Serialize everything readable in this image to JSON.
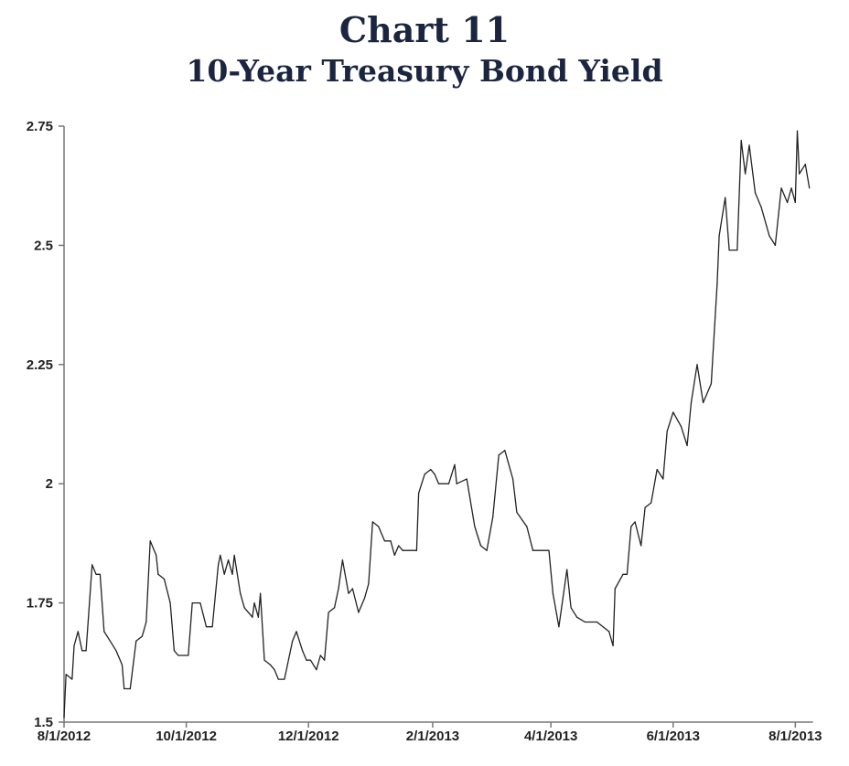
{
  "chart_data": {
    "type": "line",
    "title": "Chart 11",
    "subtitle": "10-Year Treasury Bond Yield",
    "xlabel": "",
    "ylabel": "",
    "x_unit": "days since 8/1/2012",
    "xlim": [
      0,
      372
    ],
    "ylim": [
      1.5,
      2.75
    ],
    "grid": false,
    "legend": "none",
    "y_ticks": [
      {
        "value": 2.75,
        "label": "2.75"
      },
      {
        "value": 2.5,
        "label": "2.5"
      },
      {
        "value": 2.25,
        "label": "2.25"
      },
      {
        "value": 2.0,
        "label": "2"
      },
      {
        "value": 1.75,
        "label": "1.75"
      },
      {
        "value": 1.5,
        "label": "1.5"
      }
    ],
    "x_ticks": [
      {
        "value": 0,
        "label": "8/1/2012"
      },
      {
        "value": 61,
        "label": "10/1/2012"
      },
      {
        "value": 122,
        "label": "12/1/2012"
      },
      {
        "value": 184,
        "label": "2/1/2013"
      },
      {
        "value": 243,
        "label": "4/1/2013"
      },
      {
        "value": 304,
        "label": "6/1/2013"
      },
      {
        "value": 365,
        "label": "8/1/2013"
      }
    ],
    "series": [
      {
        "name": "10-Year Treasury Bond Yield",
        "color": "#222222",
        "x": [
          0,
          1,
          4,
          5,
          7,
          9,
          11,
          14,
          16,
          18,
          20,
          23,
          26,
          29,
          30,
          33,
          36,
          39,
          41,
          43,
          46,
          47,
          50,
          53,
          55,
          57,
          62,
          64,
          68,
          71,
          74,
          77,
          78,
          80,
          82,
          84,
          85,
          88,
          90,
          94,
          95,
          97,
          98,
          100,
          103,
          105,
          107,
          110,
          114,
          116,
          119,
          121,
          123,
          126,
          128,
          130,
          132,
          135,
          137,
          139,
          142,
          144,
          147,
          150,
          152,
          154,
          157,
          160,
          163,
          165,
          167,
          169,
          176,
          177,
          180,
          183,
          185,
          187,
          192,
          195,
          196,
          201,
          205,
          208,
          211,
          214,
          217,
          220,
          224,
          226,
          231,
          234,
          242,
          244,
          247,
          251,
          253,
          256,
          260,
          266,
          272,
          274,
          275,
          279,
          281,
          283,
          285,
          288,
          290,
          293,
          296,
          299,
          301,
          304,
          308,
          311,
          313,
          316,
          319,
          323,
          326,
          327,
          330,
          332,
          336,
          338,
          340,
          342,
          345,
          348,
          352,
          355,
          358,
          361,
          363,
          365,
          366,
          367,
          370,
          372
        ],
        "y": [
          1.51,
          1.6,
          1.59,
          1.66,
          1.69,
          1.65,
          1.65,
          1.83,
          1.81,
          1.81,
          1.69,
          1.67,
          1.65,
          1.62,
          1.57,
          1.57,
          1.67,
          1.68,
          1.71,
          1.88,
          1.85,
          1.81,
          1.8,
          1.75,
          1.65,
          1.64,
          1.64,
          1.75,
          1.75,
          1.7,
          1.7,
          1.83,
          1.85,
          1.81,
          1.84,
          1.81,
          1.85,
          1.77,
          1.74,
          1.72,
          1.75,
          1.72,
          1.77,
          1.63,
          1.62,
          1.61,
          1.59,
          1.59,
          1.67,
          1.69,
          1.65,
          1.63,
          1.63,
          1.61,
          1.64,
          1.63,
          1.73,
          1.74,
          1.78,
          1.84,
          1.77,
          1.78,
          1.73,
          1.76,
          1.79,
          1.92,
          1.91,
          1.88,
          1.88,
          1.85,
          1.87,
          1.86,
          1.86,
          1.98,
          2.02,
          2.03,
          2.02,
          2.0,
          2.0,
          2.04,
          2.0,
          2.01,
          1.91,
          1.87,
          1.86,
          1.93,
          2.06,
          2.07,
          2.01,
          1.94,
          1.91,
          1.86,
          1.86,
          1.77,
          1.7,
          1.82,
          1.74,
          1.72,
          1.71,
          1.71,
          1.69,
          1.66,
          1.78,
          1.81,
          1.81,
          1.91,
          1.92,
          1.87,
          1.95,
          1.96,
          2.03,
          2.01,
          2.11,
          2.15,
          2.12,
          2.08,
          2.17,
          2.25,
          2.17,
          2.21,
          2.42,
          2.52,
          2.6,
          2.49,
          2.49,
          2.72,
          2.65,
          2.71,
          2.61,
          2.58,
          2.52,
          2.5,
          2.62,
          2.59,
          2.62,
          2.59,
          2.74,
          2.65,
          2.67,
          2.62
        ]
      }
    ]
  }
}
